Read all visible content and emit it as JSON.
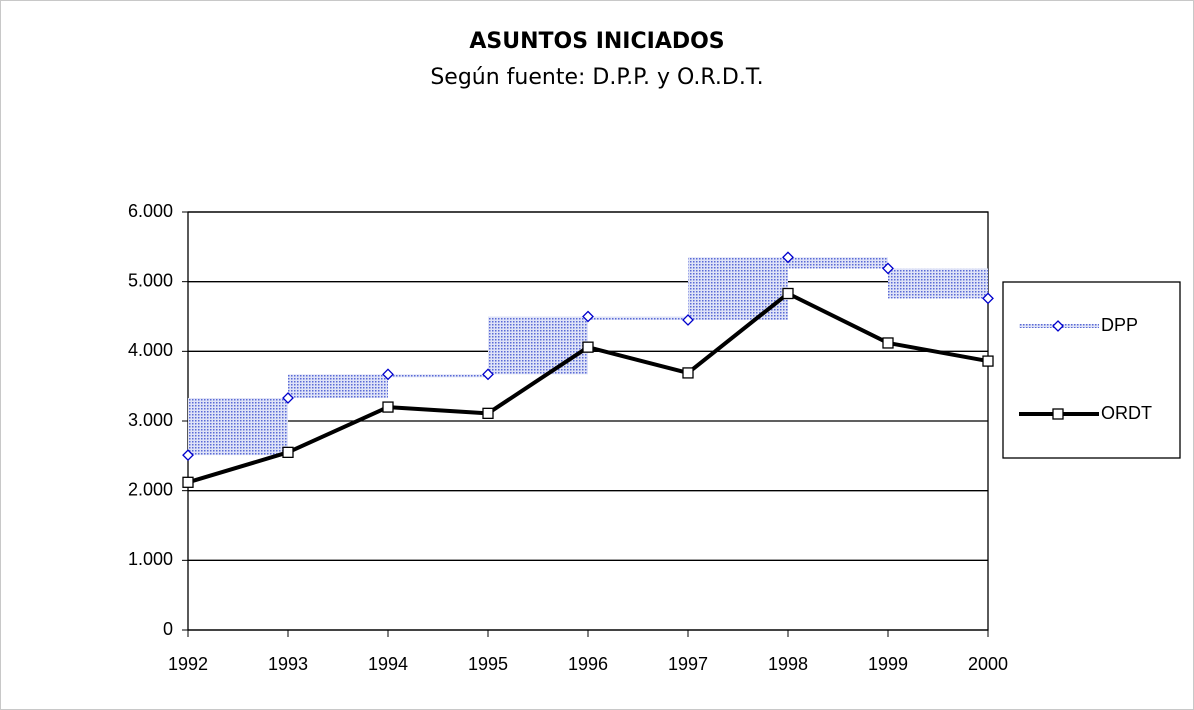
{
  "chart_data": {
    "type": "line",
    "title": "ASUNTOS INICIADOS",
    "subtitle": "Según fuente: D.P.P. y O.R.D.T.",
    "categories": [
      "1992",
      "1993",
      "1994",
      "1995",
      "1996",
      "1997",
      "1998",
      "1999",
      "2000"
    ],
    "series": [
      {
        "name": "DPP",
        "color": "#0000cc",
        "values": [
          2510,
          3330,
          3670,
          3670,
          4500,
          4450,
          5350,
          5190,
          4760
        ]
      },
      {
        "name": "ORDT",
        "color": "#000000",
        "values": [
          2120,
          2550,
          3200,
          3110,
          4060,
          3690,
          4830,
          4120,
          3860
        ]
      }
    ],
    "ylim": [
      0,
      6000
    ],
    "yticks": [
      0,
      {
        "value": 1000,
        "label": "1.000"
      },
      {
        "value": 2000,
        "label": "2.000"
      },
      {
        "value": 3000,
        "label": "3.000"
      },
      {
        "value": 4000,
        "label": "4.000"
      },
      {
        "value": 5000,
        "label": "5.000"
      },
      {
        "value": 6000,
        "label": "6.000"
      }
    ],
    "grid": true,
    "legend": "right"
  }
}
